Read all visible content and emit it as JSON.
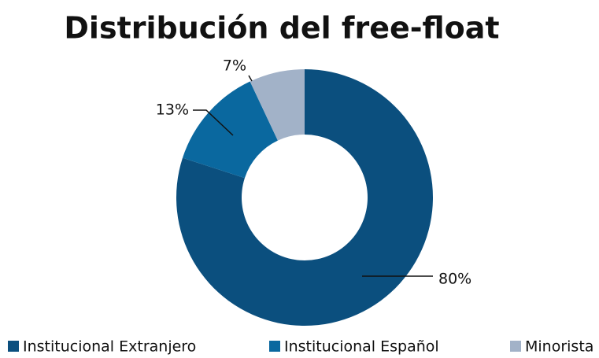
{
  "chart_data": {
    "type": "pie",
    "title": "Distribución del free-float",
    "categories": [
      "Institucional Extranjero",
      "Institucional Español",
      "Minorista"
    ],
    "values": [
      80,
      13,
      7
    ],
    "value_labels": [
      "80%",
      "13%",
      "7%"
    ],
    "colors": [
      "#0b4f7e",
      "#0a689f",
      "#a2b2c8"
    ],
    "donut": true,
    "legend": "bottom"
  }
}
